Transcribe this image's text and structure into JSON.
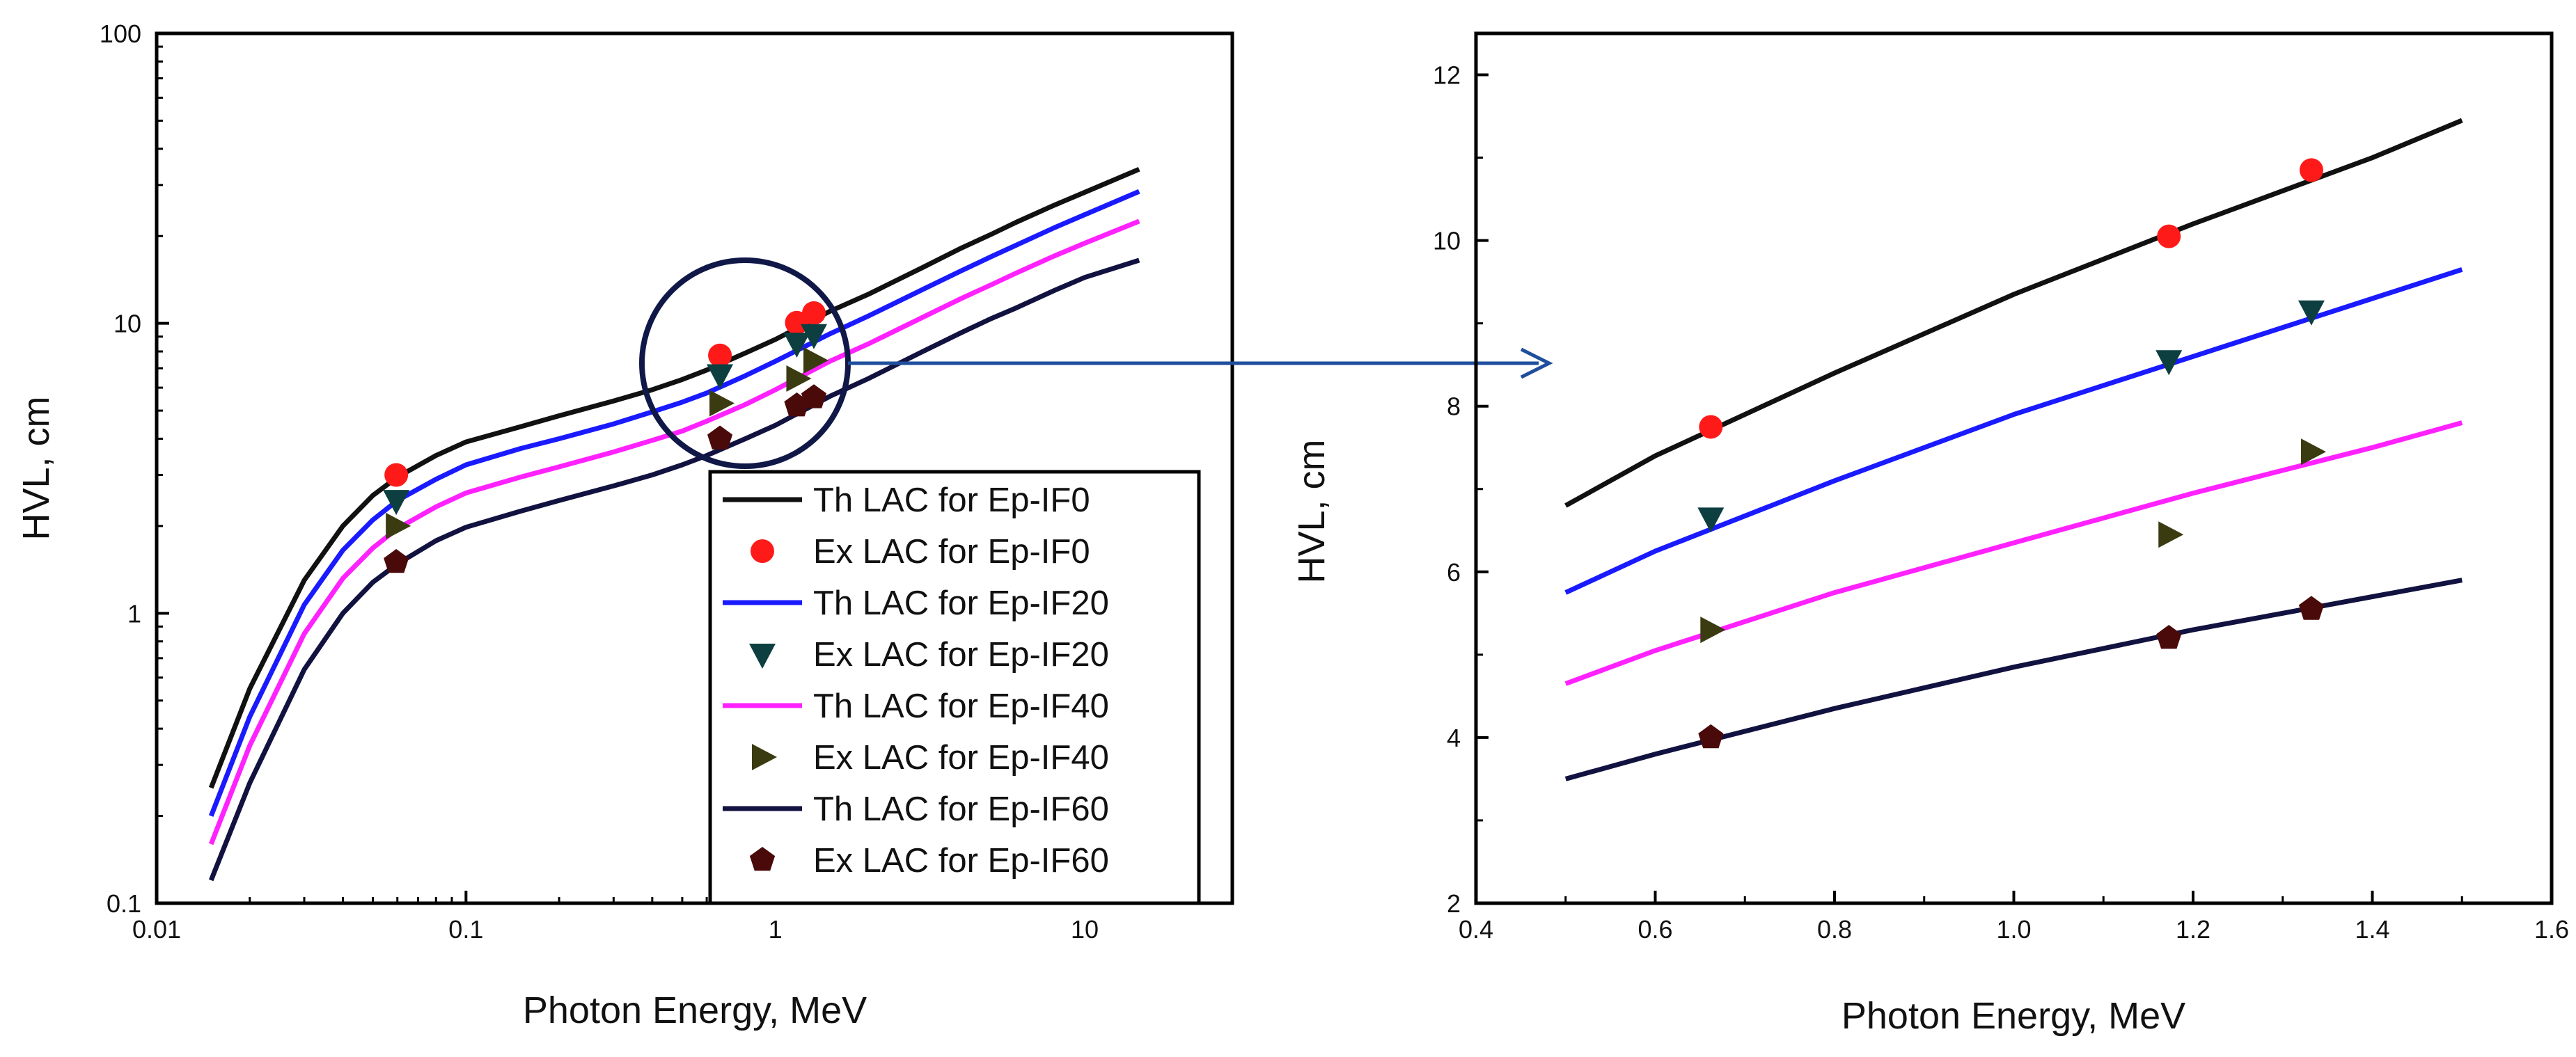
{
  "chart_data": [
    {
      "type": "line",
      "panel": "left",
      "title": "",
      "xlabel": "Photon Energy, MeV",
      "ylabel": "HVL, cm",
      "xscale": "log",
      "yscale": "log",
      "xlim": [
        0.01,
        30
      ],
      "ylim": [
        0.1,
        100
      ],
      "xticks": [
        0.01,
        0.1,
        1,
        10
      ],
      "xtick_labels": [
        "0.01",
        "0.1",
        "1",
        "10"
      ],
      "yticks": [
        0.1,
        1,
        10,
        100
      ],
      "ytick_labels": [
        "0.1",
        "1",
        "10",
        "100"
      ],
      "grid": false,
      "legend_position": "bottom-center",
      "annotation": "circle highlighting 0.6-1.4 MeV region, arrow pointing to right panel",
      "legend": [
        {
          "label": "Th LAC for Ep-IF0",
          "color": "#111111",
          "kind": "line"
        },
        {
          "label": "Ex LAC for Ep-IF0",
          "color": "#ff1a1a",
          "kind": "marker",
          "marker": "circle"
        },
        {
          "label": "Th LAC for Ep-IF20",
          "color": "#1a1aff",
          "kind": "line"
        },
        {
          "label": "Ex LAC for Ep-IF20",
          "color": "#0d3f40",
          "kind": "marker",
          "marker": "triangle-down"
        },
        {
          "label": "Th LAC for Ep-IF40",
          "color": "#ff22ff",
          "kind": "line"
        },
        {
          "label": "Ex LAC for Ep-IF40",
          "color": "#3b3b12",
          "kind": "marker",
          "marker": "triangle-right"
        },
        {
          "label": "Th LAC for Ep-IF60",
          "color": "#121240",
          "kind": "line"
        },
        {
          "label": "Ex LAC for Ep-IF60",
          "color": "#4a0a0a",
          "kind": "marker",
          "marker": "pentagon"
        }
      ],
      "series": [
        {
          "name": "Th LAC for Ep-IF0",
          "kind": "line",
          "color": "#111111",
          "x": [
            0.015,
            0.02,
            0.03,
            0.04,
            0.05,
            0.06,
            0.08,
            0.1,
            0.15,
            0.2,
            0.3,
            0.4,
            0.5,
            0.6,
            0.8,
            1.0,
            1.5,
            2,
            3,
            4,
            5,
            6,
            8,
            10,
            15
          ],
          "y": [
            0.25,
            0.55,
            1.3,
            2.0,
            2.55,
            2.95,
            3.5,
            3.9,
            4.4,
            4.8,
            5.4,
            5.9,
            6.4,
            6.9,
            7.9,
            8.8,
            11.0,
            12.6,
            15.6,
            18.2,
            20.3,
            22.3,
            25.6,
            28.3,
            34.0
          ]
        },
        {
          "name": "Th LAC for Ep-IF20",
          "kind": "line",
          "color": "#1a1aff",
          "x": [
            0.015,
            0.02,
            0.03,
            0.04,
            0.05,
            0.06,
            0.08,
            0.1,
            0.15,
            0.2,
            0.3,
            0.4,
            0.5,
            0.6,
            0.8,
            1.0,
            1.5,
            2,
            3,
            4,
            5,
            6,
            8,
            10,
            15
          ],
          "y": [
            0.2,
            0.44,
            1.07,
            1.65,
            2.1,
            2.45,
            2.9,
            3.25,
            3.7,
            4.0,
            4.5,
            4.95,
            5.35,
            5.75,
            6.6,
            7.4,
            9.2,
            10.6,
            13.1,
            15.2,
            17.0,
            18.6,
            21.4,
            23.7,
            28.5
          ]
        },
        {
          "name": "Th LAC for Ep-IF40",
          "kind": "line",
          "color": "#ff22ff",
          "x": [
            0.015,
            0.02,
            0.03,
            0.04,
            0.05,
            0.06,
            0.08,
            0.1,
            0.15,
            0.2,
            0.3,
            0.4,
            0.5,
            0.6,
            0.8,
            1.0,
            1.5,
            2,
            3,
            4,
            5,
            6,
            8,
            10,
            15
          ],
          "y": [
            0.16,
            0.35,
            0.85,
            1.32,
            1.68,
            1.96,
            2.33,
            2.6,
            2.95,
            3.2,
            3.6,
            3.95,
            4.25,
            4.6,
            5.25,
            5.9,
            7.4,
            8.5,
            10.5,
            12.2,
            13.6,
            14.9,
            17.1,
            18.9,
            22.5
          ]
        },
        {
          "name": "Th LAC for Ep-IF60",
          "kind": "line",
          "color": "#121240",
          "x": [
            0.015,
            0.02,
            0.03,
            0.04,
            0.05,
            0.06,
            0.08,
            0.1,
            0.15,
            0.2,
            0.3,
            0.4,
            0.5,
            0.6,
            0.8,
            1.0,
            1.5,
            2,
            3,
            4,
            5,
            6,
            8,
            10,
            15
          ],
          "y": [
            0.12,
            0.26,
            0.64,
            1.0,
            1.28,
            1.48,
            1.78,
            1.98,
            2.25,
            2.45,
            2.75,
            3.0,
            3.25,
            3.5,
            4.0,
            4.45,
            5.6,
            6.45,
            8.0,
            9.3,
            10.4,
            11.3,
            13.0,
            14.4,
            16.5
          ]
        },
        {
          "name": "Ex LAC for Ep-IF0",
          "kind": "marker",
          "marker": "circle",
          "color": "#ff1a1a",
          "x": [
            0.0595,
            0.662,
            1.173,
            1.332
          ],
          "y": [
            3.0,
            7.75,
            10.05,
            10.85
          ]
        },
        {
          "name": "Ex LAC for Ep-IF20",
          "kind": "marker",
          "marker": "triangle-down",
          "color": "#0d3f40",
          "x": [
            0.0595,
            0.662,
            1.173,
            1.332
          ],
          "y": [
            2.45,
            6.65,
            8.55,
            9.15
          ]
        },
        {
          "name": "Ex LAC for Ep-IF40",
          "kind": "marker",
          "marker": "triangle-right",
          "color": "#3b3b12",
          "x": [
            0.0595,
            0.662,
            1.173,
            1.332
          ],
          "y": [
            2.0,
            5.3,
            6.45,
            7.45
          ]
        },
        {
          "name": "Ex LAC for Ep-IF60",
          "kind": "marker",
          "marker": "pentagon",
          "color": "#4a0a0a",
          "x": [
            0.0595,
            0.662,
            1.173,
            1.332
          ],
          "y": [
            1.5,
            4.0,
            5.2,
            5.55
          ]
        }
      ]
    },
    {
      "type": "line",
      "panel": "right",
      "title": "",
      "xlabel": "Photon Energy, MeV",
      "ylabel": "HVL, cm",
      "xscale": "linear",
      "yscale": "linear",
      "xlim": [
        0.4,
        1.6
      ],
      "ylim": [
        2,
        12.5
      ],
      "xticks": [
        0.4,
        0.6,
        0.8,
        1.0,
        1.2,
        1.4,
        1.6
      ],
      "xtick_labels": [
        "0.4",
        "0.6",
        "0.8",
        "1.0",
        "1.2",
        "1.4",
        "1.6"
      ],
      "yticks": [
        2,
        4,
        6,
        8,
        10,
        12
      ],
      "ytick_labels": [
        "2",
        "4",
        "6",
        "8",
        "10",
        "12"
      ],
      "grid": false,
      "series": [
        {
          "name": "Th LAC for Ep-IF0",
          "kind": "line",
          "color": "#111111",
          "x": [
            0.5,
            0.6,
            0.8,
            1.0,
            1.2,
            1.4,
            1.5
          ],
          "y": [
            6.8,
            7.4,
            8.4,
            9.35,
            10.2,
            11.0,
            11.45
          ]
        },
        {
          "name": "Th LAC for Ep-IF20",
          "kind": "line",
          "color": "#1a1aff",
          "x": [
            0.5,
            0.6,
            0.8,
            1.0,
            1.2,
            1.4,
            1.5
          ],
          "y": [
            5.75,
            6.25,
            7.1,
            7.9,
            8.6,
            9.3,
            9.65
          ]
        },
        {
          "name": "Th LAC for Ep-IF40",
          "kind": "line",
          "color": "#ff22ff",
          "x": [
            0.5,
            0.6,
            0.8,
            1.0,
            1.2,
            1.4,
            1.5
          ],
          "y": [
            4.65,
            5.05,
            5.75,
            6.35,
            6.95,
            7.5,
            7.8
          ]
        },
        {
          "name": "Th LAC for Ep-IF60",
          "kind": "line",
          "color": "#121240",
          "x": [
            0.5,
            0.6,
            0.8,
            1.0,
            1.2,
            1.4,
            1.5
          ],
          "y": [
            3.5,
            3.8,
            4.35,
            4.85,
            5.3,
            5.7,
            5.9
          ]
        },
        {
          "name": "Ex LAC for Ep-IF0",
          "kind": "marker",
          "marker": "circle",
          "color": "#ff1a1a",
          "x": [
            0.662,
            1.173,
            1.332
          ],
          "y": [
            7.75,
            10.05,
            10.85
          ]
        },
        {
          "name": "Ex LAC for Ep-IF20",
          "kind": "marker",
          "marker": "triangle-down",
          "color": "#0d3f40",
          "x": [
            0.662,
            1.173,
            1.332
          ],
          "y": [
            6.65,
            8.55,
            9.15
          ]
        },
        {
          "name": "Ex LAC for Ep-IF40",
          "kind": "marker",
          "marker": "triangle-right",
          "color": "#3b3b12",
          "x": [
            0.662,
            1.173,
            1.332
          ],
          "y": [
            5.3,
            6.45,
            7.45
          ]
        },
        {
          "name": "Ex LAC for Ep-IF60",
          "kind": "marker",
          "marker": "pentagon",
          "color": "#4a0a0a",
          "x": [
            0.662,
            1.173,
            1.332
          ],
          "y": [
            4.0,
            5.2,
            5.55
          ]
        }
      ]
    }
  ]
}
